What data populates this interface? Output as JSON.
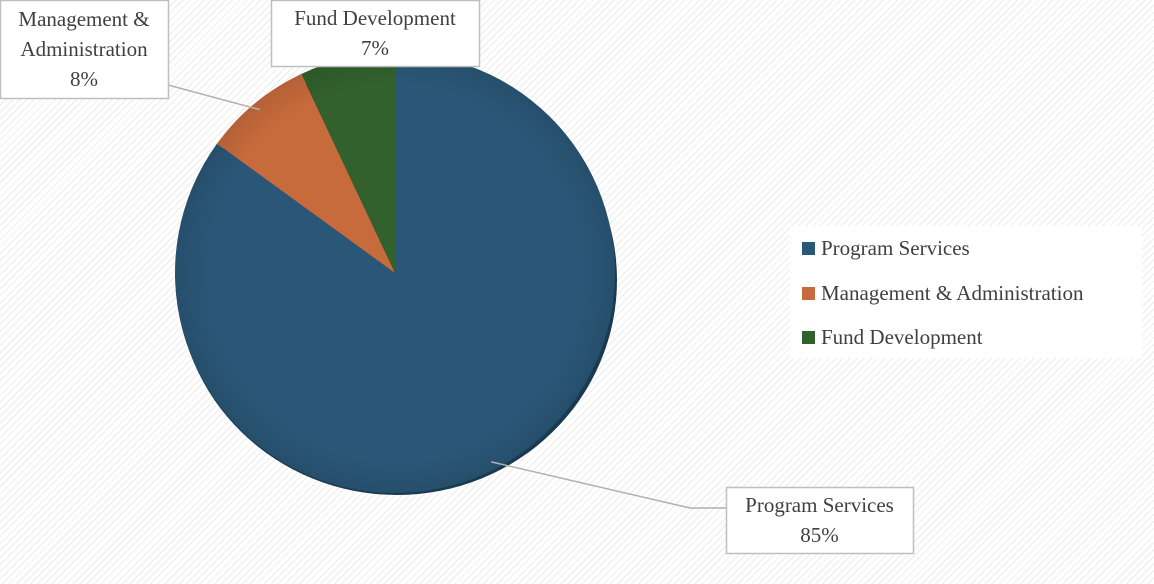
{
  "chart_data": {
    "type": "pie",
    "categories": [
      "Program Services",
      "Management & Administration",
      "Fund Development"
    ],
    "values": [
      85,
      8,
      7
    ],
    "unit": "%",
    "colors": [
      "#2a5777",
      "#c86b3c",
      "#32612d"
    ],
    "data_labels": [
      {
        "lines": [
          "Program Services",
          "85%"
        ]
      },
      {
        "lines": [
          "Management &",
          "Administration",
          "8%"
        ]
      },
      {
        "lines": [
          "Fund Development",
          "7%"
        ]
      }
    ],
    "legend": {
      "placement": "right",
      "entries": [
        "Program Services",
        "Management & Administration",
        "Fund Development"
      ]
    }
  }
}
